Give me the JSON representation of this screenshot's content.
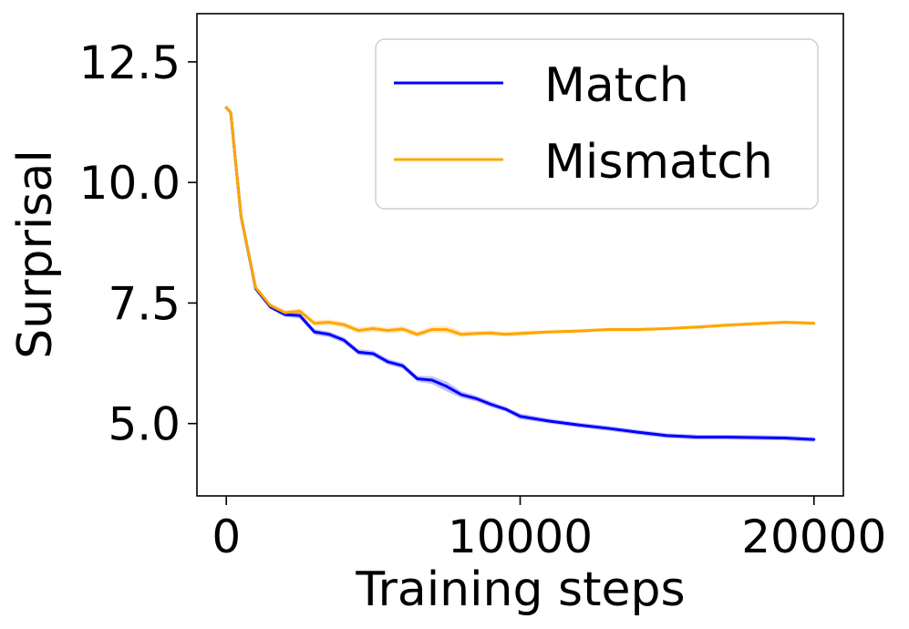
{
  "chart_data": {
    "type": "line",
    "xlabel": "Training steps",
    "ylabel": "Surprisal",
    "xlim": [
      -1000,
      21000
    ],
    "ylim": [
      3.5,
      13.5
    ],
    "xticks": [
      0,
      10000,
      20000
    ],
    "xtick_labels": [
      "0",
      "10000",
      "20000"
    ],
    "yticks": [
      5.0,
      7.5,
      10.0,
      12.5
    ],
    "ytick_labels": [
      "5.0",
      "7.5",
      "10.0",
      "12.5"
    ],
    "grid": false,
    "legend_position": "top-right",
    "series": [
      {
        "name": "Match",
        "color": "#0000ff",
        "x": [
          0,
          150,
          500,
          1000,
          1500,
          2000,
          2500,
          3000,
          3500,
          4000,
          4500,
          5000,
          5500,
          6000,
          6500,
          7000,
          7500,
          8000,
          8500,
          9000,
          9500,
          10000,
          11000,
          12000,
          13000,
          14000,
          15000,
          16000,
          17000,
          18000,
          19000,
          20000
        ],
        "y": [
          11.55,
          11.45,
          9.3,
          7.8,
          7.42,
          7.26,
          7.24,
          6.9,
          6.85,
          6.73,
          6.48,
          6.45,
          6.28,
          6.2,
          5.93,
          5.9,
          5.77,
          5.6,
          5.52,
          5.4,
          5.3,
          5.15,
          5.05,
          4.97,
          4.9,
          4.82,
          4.75,
          4.72,
          4.72,
          4.71,
          4.7,
          4.67
        ],
        "band": [
          0.04,
          0.04,
          0.05,
          0.05,
          0.05,
          0.05,
          0.06,
          0.06,
          0.06,
          0.06,
          0.06,
          0.06,
          0.06,
          0.06,
          0.06,
          0.08,
          0.1,
          0.07,
          0.06,
          0.06,
          0.05,
          0.06,
          0.05,
          0.05,
          0.05,
          0.05,
          0.05,
          0.05,
          0.05,
          0.05,
          0.05,
          0.05
        ]
      },
      {
        "name": "Mismatch",
        "color": "#ffa500",
        "x": [
          0,
          150,
          500,
          1000,
          1500,
          2000,
          2500,
          3000,
          3500,
          4000,
          4500,
          5000,
          5500,
          6000,
          6500,
          7000,
          7500,
          8000,
          8500,
          9000,
          9500,
          10000,
          11000,
          12000,
          13000,
          14000,
          15000,
          16000,
          17000,
          18000,
          19000,
          20000
        ],
        "y": [
          11.55,
          11.45,
          9.3,
          7.82,
          7.45,
          7.3,
          7.33,
          7.08,
          7.1,
          7.05,
          6.93,
          6.97,
          6.93,
          6.96,
          6.85,
          6.95,
          6.95,
          6.85,
          6.87,
          6.88,
          6.85,
          6.87,
          6.9,
          6.92,
          6.95,
          6.95,
          6.97,
          7.0,
          7.04,
          7.07,
          7.1,
          7.08
        ],
        "band": [
          0.04,
          0.04,
          0.05,
          0.05,
          0.05,
          0.05,
          0.06,
          0.06,
          0.06,
          0.06,
          0.06,
          0.06,
          0.06,
          0.06,
          0.06,
          0.06,
          0.08,
          0.06,
          0.05,
          0.05,
          0.05,
          0.05,
          0.04,
          0.04,
          0.04,
          0.04,
          0.04,
          0.04,
          0.04,
          0.04,
          0.04,
          0.04
        ]
      }
    ]
  }
}
